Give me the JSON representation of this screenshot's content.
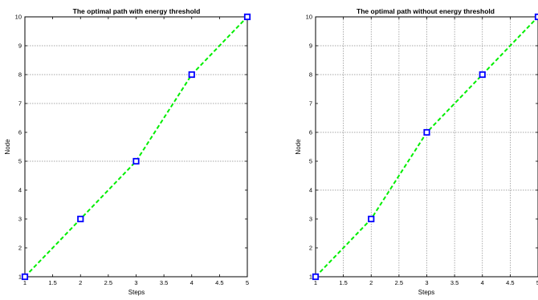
{
  "charts": [
    {
      "title": "The optimal path with energy threshold",
      "xlabel": "Steps",
      "ylabel": "Node",
      "xticks": [
        "1",
        "1.5",
        "2",
        "2.5",
        "3",
        "3.5",
        "4",
        "4.5",
        "5"
      ],
      "yticks": [
        "1",
        "2",
        "3",
        "4",
        "5",
        "6",
        "7",
        "8",
        "9",
        "10"
      ]
    },
    {
      "title": "The optimal path without energy threshold",
      "xlabel": "Steps",
      "ylabel": "Node",
      "xticks": [
        "1",
        "1.5",
        "2",
        "2.5",
        "3",
        "3.5",
        "4",
        "4.5",
        "5"
      ],
      "yticks": [
        "1",
        "2",
        "3",
        "4",
        "5",
        "6",
        "7",
        "8",
        "9",
        "10"
      ]
    }
  ],
  "chart_data": [
    {
      "type": "line",
      "title": "The optimal path with energy threshold",
      "xlabel": "Steps",
      "ylabel": "Node",
      "xlim": [
        1,
        5
      ],
      "ylim": [
        1,
        10
      ],
      "series": [
        {
          "x": [
            1,
            2,
            3,
            4,
            5
          ],
          "y": [
            1,
            3,
            5,
            8,
            10
          ],
          "line_color": "#00ee00",
          "line_style": "dashed",
          "marker": "square",
          "marker_color": "#0000ff"
        }
      ],
      "grid": {
        "horizontal_lines_at": [
          5,
          7,
          8,
          9
        ]
      }
    },
    {
      "type": "line",
      "title": "The optimal path without energy threshold",
      "xlabel": "Steps",
      "ylabel": "Node",
      "xlim": [
        1,
        5
      ],
      "ylim": [
        1,
        10
      ],
      "series": [
        {
          "x": [
            1,
            2,
            3,
            4,
            5
          ],
          "y": [
            1,
            3,
            6,
            8,
            10
          ],
          "line_color": "#00ee00",
          "line_style": "dashed",
          "marker": "square",
          "marker_color": "#0000ff"
        }
      ],
      "grid": {
        "horizontal_lines_at": [
          4,
          6,
          8,
          9
        ],
        "vertical_lines_at": [
          1.5,
          2,
          2.5,
          3,
          3.5,
          4,
          4.5
        ]
      }
    }
  ]
}
